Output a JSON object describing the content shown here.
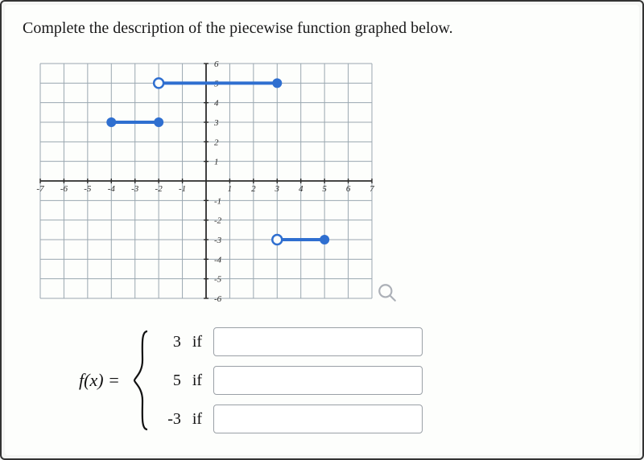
{
  "prompt": "Complete the description of the piecewise function graphed below.",
  "graph": {
    "type": "line",
    "xlim": [
      -7,
      7
    ],
    "ylim": [
      -6,
      6
    ],
    "xtick_step": 1,
    "ytick_step": 1,
    "grid_color": "#9aa7b0",
    "axis_color": "#2b2b2b",
    "background_color": "#fdfefc",
    "label_fontsize": 11,
    "x_labels": [
      "-7",
      "-6",
      "-5",
      "-4",
      "-3",
      "-2",
      "-1",
      "",
      "1",
      "2",
      "3",
      "4",
      "5",
      "6",
      "7"
    ],
    "y_labels_pos": [
      "6",
      "5",
      "4",
      "3",
      "2",
      "1"
    ],
    "y_labels_neg": [
      "-1",
      "-2",
      "-3",
      "-4",
      "-5",
      "-6"
    ],
    "series": [
      {
        "y": 3,
        "x_from": -4,
        "x_to": -2,
        "color": "#2f6fd0",
        "line_width": 4,
        "left_endpoint": "closed",
        "right_endpoint": "closed",
        "endpoint_radius": 6
      },
      {
        "y": 5,
        "x_from": -2,
        "x_to": 3,
        "color": "#2f6fd0",
        "line_width": 4,
        "left_endpoint": "open",
        "right_endpoint": "closed",
        "endpoint_radius": 6
      },
      {
        "y": -3,
        "x_from": 3,
        "x_to": 5,
        "color": "#2f6fd0",
        "line_width": 4,
        "left_endpoint": "open",
        "right_endpoint": "closed",
        "endpoint_radius": 6
      }
    ]
  },
  "function": {
    "lhs": "f(x) =",
    "pieces": [
      {
        "value": "3",
        "keyword": "if",
        "answer": ""
      },
      {
        "value": "5",
        "keyword": "if",
        "answer": ""
      },
      {
        "value": "-3",
        "keyword": "if",
        "answer": ""
      }
    ]
  }
}
